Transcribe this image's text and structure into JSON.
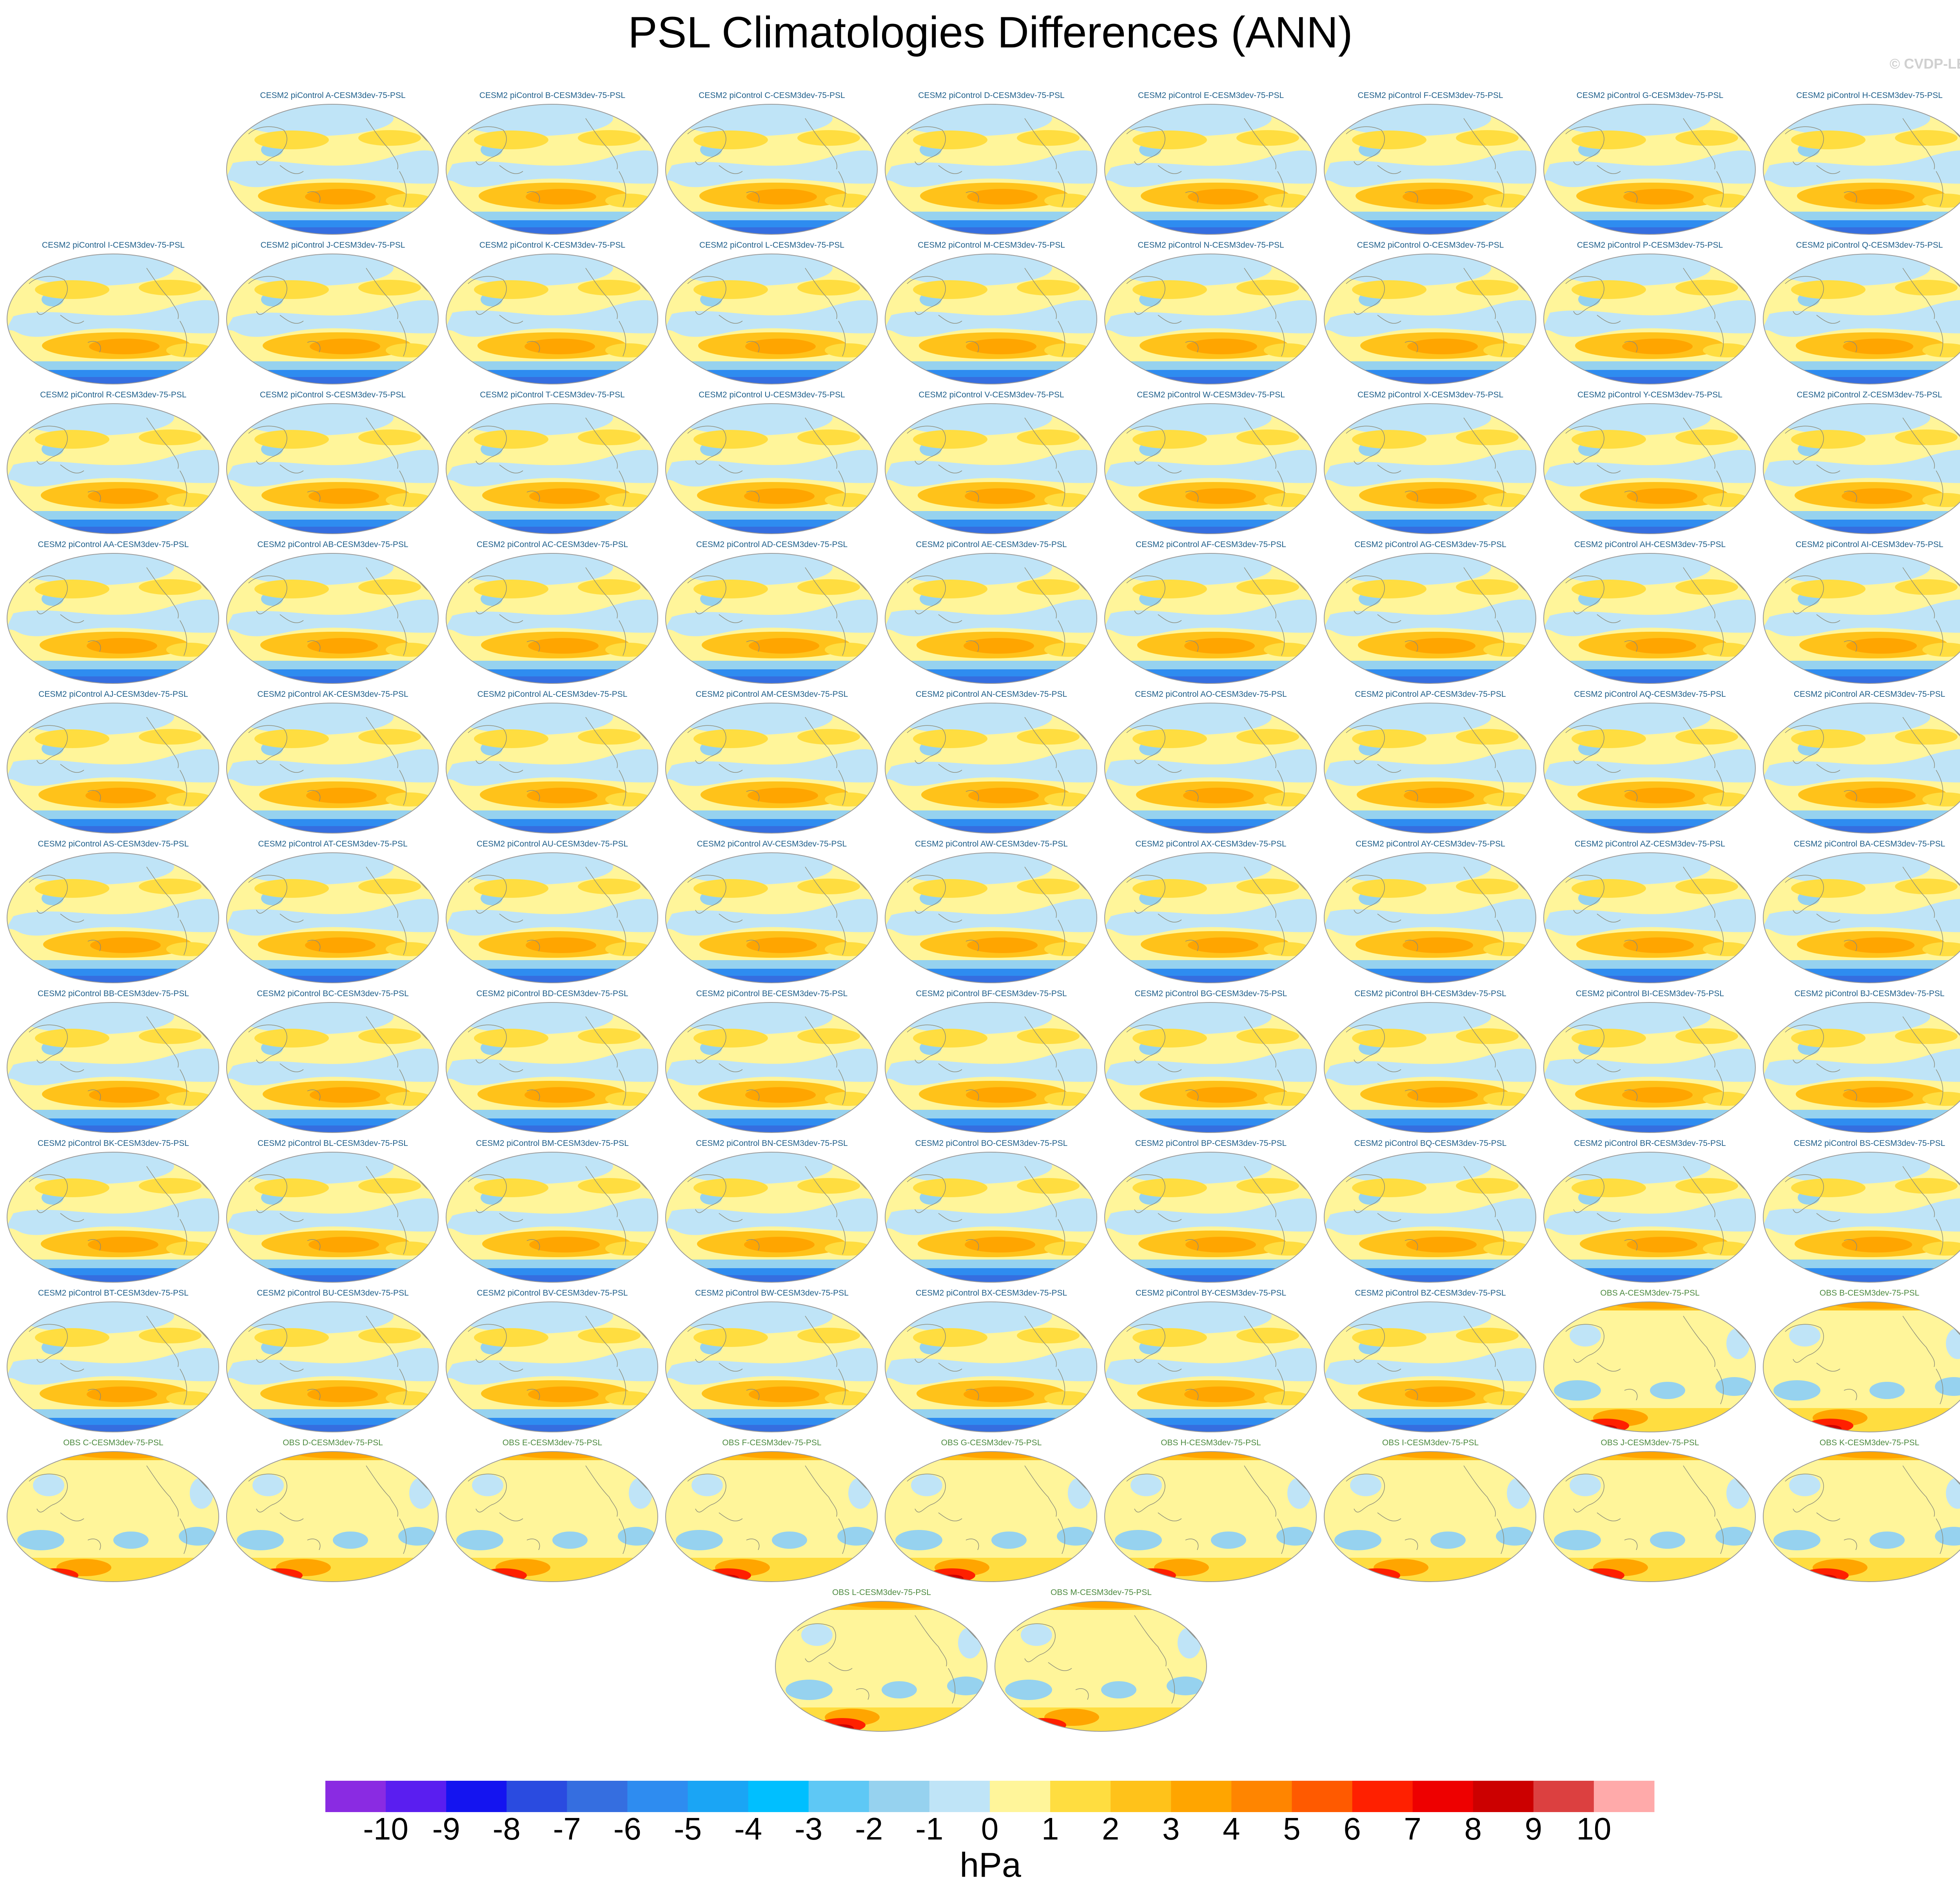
{
  "title": "PSL Climatologies Differences (ANN)",
  "watermark": "© CVDP-LE",
  "chart_data": {
    "type": "map-panels",
    "variable": "PSL",
    "season": "ANN",
    "projection": "Robinson (global)",
    "units": "hPa",
    "panels": [
      {
        "label": "CESM2 piControl A-CESM3dev-75-PSL",
        "kind": "model"
      },
      {
        "label": "CESM2 piControl B-CESM3dev-75-PSL",
        "kind": "model"
      },
      {
        "label": "CESM2 piControl C-CESM3dev-75-PSL",
        "kind": "model"
      },
      {
        "label": "CESM2 piControl D-CESM3dev-75-PSL",
        "kind": "model"
      },
      {
        "label": "CESM2 piControl E-CESM3dev-75-PSL",
        "kind": "model"
      },
      {
        "label": "CESM2 piControl F-CESM3dev-75-PSL",
        "kind": "model"
      },
      {
        "label": "CESM2 piControl G-CESM3dev-75-PSL",
        "kind": "model"
      },
      {
        "label": "CESM2 piControl H-CESM3dev-75-PSL",
        "kind": "model"
      },
      {
        "label": "CESM2 piControl I-CESM3dev-75-PSL",
        "kind": "model"
      },
      {
        "label": "CESM2 piControl J-CESM3dev-75-PSL",
        "kind": "model"
      },
      {
        "label": "CESM2 piControl K-CESM3dev-75-PSL",
        "kind": "model"
      },
      {
        "label": "CESM2 piControl L-CESM3dev-75-PSL",
        "kind": "model"
      },
      {
        "label": "CESM2 piControl M-CESM3dev-75-PSL",
        "kind": "model"
      },
      {
        "label": "CESM2 piControl N-CESM3dev-75-PSL",
        "kind": "model"
      },
      {
        "label": "CESM2 piControl O-CESM3dev-75-PSL",
        "kind": "model"
      },
      {
        "label": "CESM2 piControl P-CESM3dev-75-PSL",
        "kind": "model"
      },
      {
        "label": "CESM2 piControl Q-CESM3dev-75-PSL",
        "kind": "model"
      },
      {
        "label": "CESM2 piControl R-CESM3dev-75-PSL",
        "kind": "model"
      },
      {
        "label": "CESM2 piControl S-CESM3dev-75-PSL",
        "kind": "model"
      },
      {
        "label": "CESM2 piControl T-CESM3dev-75-PSL",
        "kind": "model"
      },
      {
        "label": "CESM2 piControl U-CESM3dev-75-PSL",
        "kind": "model"
      },
      {
        "label": "CESM2 piControl V-CESM3dev-75-PSL",
        "kind": "model"
      },
      {
        "label": "CESM2 piControl W-CESM3dev-75-PSL",
        "kind": "model"
      },
      {
        "label": "CESM2 piControl X-CESM3dev-75-PSL",
        "kind": "model"
      },
      {
        "label": "CESM2 piControl Y-CESM3dev-75-PSL",
        "kind": "model"
      },
      {
        "label": "CESM2 piControl Z-CESM3dev-75-PSL",
        "kind": "model"
      },
      {
        "label": "CESM2 piControl AA-CESM3dev-75-PSL",
        "kind": "model"
      },
      {
        "label": "CESM2 piControl AB-CESM3dev-75-PSL",
        "kind": "model"
      },
      {
        "label": "CESM2 piControl AC-CESM3dev-75-PSL",
        "kind": "model"
      },
      {
        "label": "CESM2 piControl AD-CESM3dev-75-PSL",
        "kind": "model"
      },
      {
        "label": "CESM2 piControl AE-CESM3dev-75-PSL",
        "kind": "model"
      },
      {
        "label": "CESM2 piControl AF-CESM3dev-75-PSL",
        "kind": "model"
      },
      {
        "label": "CESM2 piControl AG-CESM3dev-75-PSL",
        "kind": "model"
      },
      {
        "label": "CESM2 piControl AH-CESM3dev-75-PSL",
        "kind": "model"
      },
      {
        "label": "CESM2 piControl AI-CESM3dev-75-PSL",
        "kind": "model"
      },
      {
        "label": "CESM2 piControl AJ-CESM3dev-75-PSL",
        "kind": "model"
      },
      {
        "label": "CESM2 piControl AK-CESM3dev-75-PSL",
        "kind": "model"
      },
      {
        "label": "CESM2 piControl AL-CESM3dev-75-PSL",
        "kind": "model"
      },
      {
        "label": "CESM2 piControl AM-CESM3dev-75-PSL",
        "kind": "model"
      },
      {
        "label": "CESM2 piControl AN-CESM3dev-75-PSL",
        "kind": "model"
      },
      {
        "label": "CESM2 piControl AO-CESM3dev-75-PSL",
        "kind": "model"
      },
      {
        "label": "CESM2 piControl AP-CESM3dev-75-PSL",
        "kind": "model"
      },
      {
        "label": "CESM2 piControl AQ-CESM3dev-75-PSL",
        "kind": "model"
      },
      {
        "label": "CESM2 piControl AR-CESM3dev-75-PSL",
        "kind": "model"
      },
      {
        "label": "CESM2 piControl AS-CESM3dev-75-PSL",
        "kind": "model"
      },
      {
        "label": "CESM2 piControl AT-CESM3dev-75-PSL",
        "kind": "model"
      },
      {
        "label": "CESM2 piControl AU-CESM3dev-75-PSL",
        "kind": "model"
      },
      {
        "label": "CESM2 piControl AV-CESM3dev-75-PSL",
        "kind": "model"
      },
      {
        "label": "CESM2 piControl AW-CESM3dev-75-PSL",
        "kind": "model"
      },
      {
        "label": "CESM2 piControl AX-CESM3dev-75-PSL",
        "kind": "model"
      },
      {
        "label": "CESM2 piControl AY-CESM3dev-75-PSL",
        "kind": "model"
      },
      {
        "label": "CESM2 piControl AZ-CESM3dev-75-PSL",
        "kind": "model"
      },
      {
        "label": "CESM2 piControl BA-CESM3dev-75-PSL",
        "kind": "model"
      },
      {
        "label": "CESM2 piControl BB-CESM3dev-75-PSL",
        "kind": "model"
      },
      {
        "label": "CESM2 piControl BC-CESM3dev-75-PSL",
        "kind": "model"
      },
      {
        "label": "CESM2 piControl BD-CESM3dev-75-PSL",
        "kind": "model"
      },
      {
        "label": "CESM2 piControl BE-CESM3dev-75-PSL",
        "kind": "model"
      },
      {
        "label": "CESM2 piControl BF-CESM3dev-75-PSL",
        "kind": "model"
      },
      {
        "label": "CESM2 piControl BG-CESM3dev-75-PSL",
        "kind": "model"
      },
      {
        "label": "CESM2 piControl BH-CESM3dev-75-PSL",
        "kind": "model"
      },
      {
        "label": "CESM2 piControl BI-CESM3dev-75-PSL",
        "kind": "model"
      },
      {
        "label": "CESM2 piControl BJ-CESM3dev-75-PSL",
        "kind": "model"
      },
      {
        "label": "CESM2 piControl BK-CESM3dev-75-PSL",
        "kind": "model"
      },
      {
        "label": "CESM2 piControl BL-CESM3dev-75-PSL",
        "kind": "model"
      },
      {
        "label": "CESM2 piControl BM-CESM3dev-75-PSL",
        "kind": "model"
      },
      {
        "label": "CESM2 piControl BN-CESM3dev-75-PSL",
        "kind": "model"
      },
      {
        "label": "CESM2 piControl BO-CESM3dev-75-PSL",
        "kind": "model"
      },
      {
        "label": "CESM2 piControl BP-CESM3dev-75-PSL",
        "kind": "model"
      },
      {
        "label": "CESM2 piControl BQ-CESM3dev-75-PSL",
        "kind": "model"
      },
      {
        "label": "CESM2 piControl BR-CESM3dev-75-PSL",
        "kind": "model"
      },
      {
        "label": "CESM2 piControl BS-CESM3dev-75-PSL",
        "kind": "model"
      },
      {
        "label": "CESM2 piControl BT-CESM3dev-75-PSL",
        "kind": "model"
      },
      {
        "label": "CESM2 piControl BU-CESM3dev-75-PSL",
        "kind": "model"
      },
      {
        "label": "CESM2 piControl BV-CESM3dev-75-PSL",
        "kind": "model"
      },
      {
        "label": "CESM2 piControl BW-CESM3dev-75-PSL",
        "kind": "model"
      },
      {
        "label": "CESM2 piControl BX-CESM3dev-75-PSL",
        "kind": "model"
      },
      {
        "label": "CESM2 piControl BY-CESM3dev-75-PSL",
        "kind": "model"
      },
      {
        "label": "CESM2 piControl BZ-CESM3dev-75-PSL",
        "kind": "model"
      },
      {
        "label": "OBS A-CESM3dev-75-PSL",
        "kind": "obs"
      },
      {
        "label": "OBS B-CESM3dev-75-PSL",
        "kind": "obs"
      },
      {
        "label": "OBS C-CESM3dev-75-PSL",
        "kind": "obs"
      },
      {
        "label": "OBS D-CESM3dev-75-PSL",
        "kind": "obs"
      },
      {
        "label": "OBS E-CESM3dev-75-PSL",
        "kind": "obs"
      },
      {
        "label": "OBS F-CESM3dev-75-PSL",
        "kind": "obs"
      },
      {
        "label": "OBS G-CESM3dev-75-PSL",
        "kind": "obs"
      },
      {
        "label": "OBS H-CESM3dev-75-PSL",
        "kind": "obs"
      },
      {
        "label": "OBS I-CESM3dev-75-PSL",
        "kind": "obs"
      },
      {
        "label": "OBS J-CESM3dev-75-PSL",
        "kind": "obs"
      },
      {
        "label": "OBS K-CESM3dev-75-PSL",
        "kind": "obs"
      },
      {
        "label": "OBS L-CESM3dev-75-PSL",
        "kind": "obs"
      },
      {
        "label": "OBS M-CESM3dev-75-PSL",
        "kind": "obs"
      }
    ],
    "colorbar": {
      "label": "hPa",
      "ticks": [
        "-10",
        "-9",
        "-8",
        "-7",
        "-6",
        "-5",
        "-4",
        "-3",
        "-2",
        "-1",
        "0",
        "1",
        "2",
        "3",
        "4",
        "5",
        "6",
        "7",
        "8",
        "9",
        "10"
      ],
      "colors": [
        "#8a2be2",
        "#5a1ef0",
        "#1414f0",
        "#2a4be0",
        "#356ee0",
        "#2e8cf0",
        "#1aa5f5",
        "#00bfff",
        "#5ec8f5",
        "#96d2ef",
        "#bfe4f7",
        "#fff59a",
        "#ffdd40",
        "#ffc21a",
        "#ffa500",
        "#ff8500",
        "#ff5a00",
        "#ff2000",
        "#ee0000",
        "#cc0000",
        "#dc4040",
        "#ffaaaa"
      ]
    },
    "map_colors": {
      "ocean_pos_light": "#fff59a",
      "pos_mid": "#ffdd40",
      "pos_strong": "#ffc21a",
      "pos_stronger": "#ffa500",
      "neg_light": "#bfe4f7",
      "neg_mid": "#96d2ef",
      "neg_strong": "#2e8cf0",
      "neg_stronger": "#356ee0",
      "obs_hot": "#ff2000",
      "obs_hotter": "#cc0000",
      "obs_pink": "#ffaaaa",
      "coast": "#8c8c7a",
      "border": "#999999"
    }
  }
}
